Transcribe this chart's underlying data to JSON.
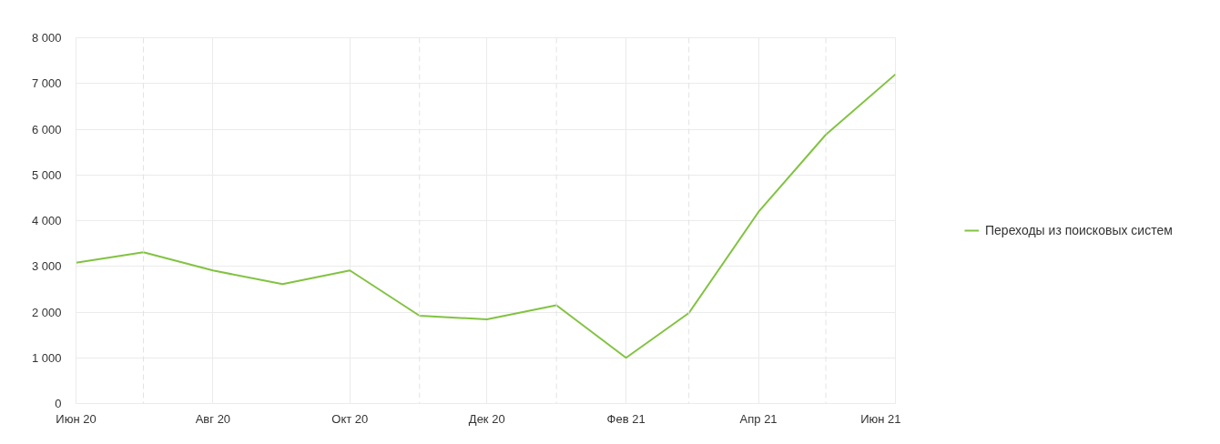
{
  "chart_data": {
    "type": "line",
    "x": [
      "2020-06",
      "2020-07",
      "2020-08",
      "2020-09",
      "2020-10",
      "2020-11",
      "2020-12",
      "2021-01",
      "2021-02",
      "2021-03",
      "2021-04",
      "2021-05",
      "2021-06"
    ],
    "series": [
      {
        "name": "Переходы из поисковых систем",
        "color": "#82c341",
        "values": [
          3080,
          3310,
          2910,
          2610,
          2910,
          1920,
          1840,
          2150,
          1000,
          1980,
          4190,
          5880,
          7200
        ]
      }
    ],
    "xlim": [
      "2020-06",
      "2021-06"
    ],
    "xticks": [
      {
        "value": "2020-06",
        "label": "Июн 20"
      },
      {
        "value": "2020-08",
        "label": "Авг 20"
      },
      {
        "value": "2020-10",
        "label": "Окт 20"
      },
      {
        "value": "2020-12",
        "label": "Дек 20"
      },
      {
        "value": "2021-02",
        "label": "Фев 21"
      },
      {
        "value": "2021-04",
        "label": "Апр 21"
      },
      {
        "value": "2021-06",
        "label": "Июн 21"
      }
    ],
    "ylim": [
      0,
      8000
    ],
    "yticks": [
      0,
      {
        "value": 1000,
        "label": "1 000"
      },
      {
        "value": 2000,
        "label": "2 000"
      },
      {
        "value": 3000,
        "label": "3 000"
      },
      {
        "value": 4000,
        "label": "4 000"
      },
      {
        "value": 5000,
        "label": "5 000"
      },
      {
        "value": 6000,
        "label": "6 000"
      },
      {
        "value": 7000,
        "label": "7 000"
      },
      {
        "value": 8000,
        "label": "8 000"
      }
    ],
    "grid": true,
    "legend": "right",
    "ref_lines": [
      {
        "axis": "x",
        "value": "2020-07",
        "color": "#e3e3e3",
        "line_style": "dashed"
      },
      {
        "axis": "x",
        "value": "2020-11",
        "color": "#e3e3e3",
        "line_style": "dashed"
      },
      {
        "axis": "x",
        "value": "2021-01",
        "color": "#e3e3e3",
        "line_style": "dashed"
      },
      {
        "axis": "x",
        "value": "2021-03",
        "color": "#e3e3e3",
        "line_style": "dashed"
      },
      {
        "axis": "x",
        "value": "2021-05",
        "color": "#e3e3e3",
        "line_style": "dashed"
      }
    ]
  }
}
